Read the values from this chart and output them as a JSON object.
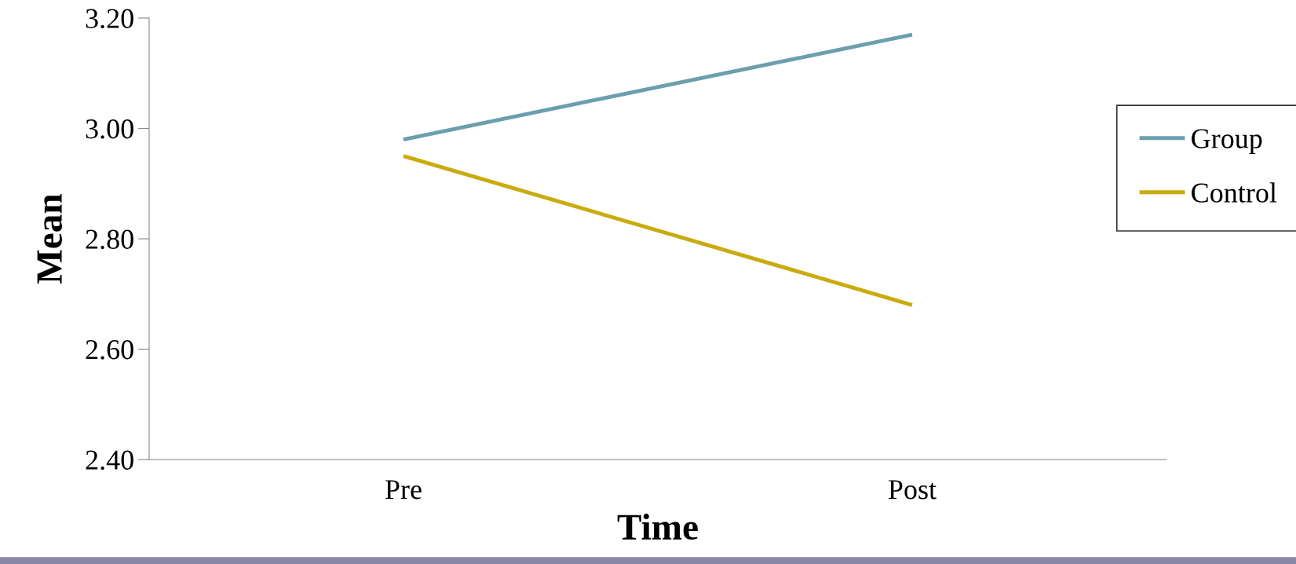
{
  "chart_data": {
    "type": "line",
    "xlabel": "Time",
    "ylabel": "Mean",
    "categories": [
      "Pre",
      "Post"
    ],
    "series": [
      {
        "name": "Group",
        "color": "#6b9fae",
        "values": [
          2.98,
          3.17
        ]
      },
      {
        "name": "Control",
        "color": "#c9ab0e",
        "values": [
          2.95,
          2.68
        ]
      }
    ],
    "ylim": [
      2.4,
      3.2
    ],
    "yticks": [
      {
        "value": 2.4,
        "label": "2.40"
      },
      {
        "value": 2.6,
        "label": "2.60"
      },
      {
        "value": 2.8,
        "label": "2.80"
      },
      {
        "value": 3.0,
        "label": "3.00"
      },
      {
        "value": 3.2,
        "label": "3.20"
      }
    ],
    "legend": "right",
    "grid": false,
    "marker": "none",
    "line_style": "solid"
  }
}
